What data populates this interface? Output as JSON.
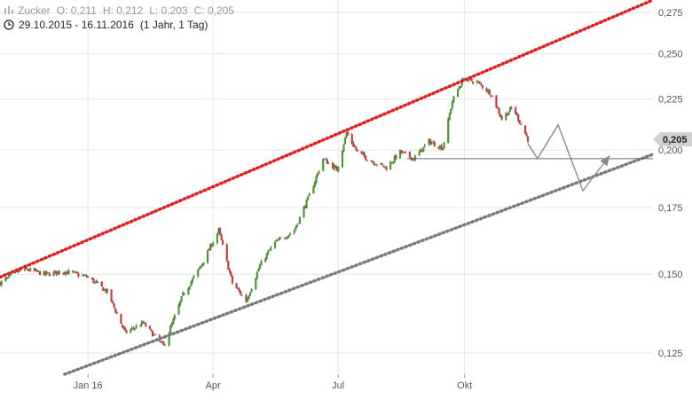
{
  "header": {
    "symbol": "Zucker",
    "open_label": "O:",
    "open": "0,211",
    "high_label": "H:",
    "high": "0,212",
    "low_label": "L:",
    "low": "0,203",
    "close_label": "C:",
    "close": "0,205",
    "period": "29.10.2015 - 16.11.2016",
    "interval": "(1 Jahr, 1 Tag)",
    "period_icon": "clock-icon",
    "symbol_icon": "chart-logo-icon"
  },
  "chart_data": {
    "type": "candlestick",
    "title": "",
    "y_scale": "log",
    "ylim": [
      0.119,
      0.283
    ],
    "y_ticks": [
      {
        "value": 0.125,
        "label": "0,125"
      },
      {
        "value": 0.15,
        "label": "0,150"
      },
      {
        "value": 0.175,
        "label": "0,175"
      },
      {
        "value": 0.2,
        "label": "0,200"
      },
      {
        "value": 0.225,
        "label": "0,225"
      },
      {
        "value": 0.25,
        "label": "0,250"
      },
      {
        "value": 0.275,
        "label": "0,275"
      }
    ],
    "xlim": [
      "2015-10-29",
      "2017-02-15"
    ],
    "x_ticks": [
      {
        "date": "2016-01-01",
        "label": "Jan 16"
      },
      {
        "date": "2016-04-01",
        "label": "Apr"
      },
      {
        "date": "2016-07-01",
        "label": "Jul"
      },
      {
        "date": "2016-10-01",
        "label": "Okt"
      }
    ],
    "grid": true,
    "last_price": {
      "value": 0.205,
      "label": "0,205"
    },
    "colors": {
      "up": "#4a9a32",
      "down": "#c83c3c",
      "wick": "#444444",
      "grid": "#e6e6e6",
      "upper_channel": "#e02020",
      "lower_channel": "#7a7a7a",
      "projection": "#8a8a8a"
    },
    "close_path": [
      {
        "date": "2015-10-29",
        "close": 0.147
      },
      {
        "date": "2015-11-15",
        "close": 0.152
      },
      {
        "date": "2015-12-01",
        "close": 0.15
      },
      {
        "date": "2015-12-15",
        "close": 0.151
      },
      {
        "date": "2016-01-01",
        "close": 0.149
      },
      {
        "date": "2016-01-15",
        "close": 0.144
      },
      {
        "date": "2016-01-28",
        "close": 0.131
      },
      {
        "date": "2016-02-10",
        "close": 0.134
      },
      {
        "date": "2016-02-25",
        "close": 0.127
      },
      {
        "date": "2016-03-10",
        "close": 0.143
      },
      {
        "date": "2016-03-22",
        "close": 0.152
      },
      {
        "date": "2016-04-05",
        "close": 0.166
      },
      {
        "date": "2016-04-15",
        "close": 0.147
      },
      {
        "date": "2016-04-25",
        "close": 0.141
      },
      {
        "date": "2016-05-05",
        "close": 0.153
      },
      {
        "date": "2016-05-15",
        "close": 0.161
      },
      {
        "date": "2016-05-30",
        "close": 0.166
      },
      {
        "date": "2016-06-10",
        "close": 0.18
      },
      {
        "date": "2016-06-20",
        "close": 0.196
      },
      {
        "date": "2016-06-30",
        "close": 0.191
      },
      {
        "date": "2016-07-07",
        "close": 0.208
      },
      {
        "date": "2016-07-15",
        "close": 0.199
      },
      {
        "date": "2016-07-25",
        "close": 0.195
      },
      {
        "date": "2016-08-05",
        "close": 0.192
      },
      {
        "date": "2016-08-15",
        "close": 0.199
      },
      {
        "date": "2016-08-25",
        "close": 0.196
      },
      {
        "date": "2016-09-05",
        "close": 0.204
      },
      {
        "date": "2016-09-15",
        "close": 0.201
      },
      {
        "date": "2016-09-22",
        "close": 0.224
      },
      {
        "date": "2016-09-30",
        "close": 0.236
      },
      {
        "date": "2016-10-10",
        "close": 0.234
      },
      {
        "date": "2016-10-20",
        "close": 0.228
      },
      {
        "date": "2016-10-28",
        "close": 0.215
      },
      {
        "date": "2016-11-05",
        "close": 0.221
      },
      {
        "date": "2016-11-16",
        "close": 0.205
      }
    ],
    "upper_channel": {
      "start": {
        "date": "2015-10-29",
        "value": 0.149
      },
      "end": {
        "date": "2017-02-15",
        "value": 0.283
      }
    },
    "lower_channel": {
      "start": {
        "date": "2015-12-15",
        "value": 0.119
      },
      "end": {
        "date": "2017-02-15",
        "value": 0.198
      }
    },
    "support_line": {
      "start_date": "2016-08-20",
      "end_date": "2017-02-15",
      "value": 0.196
    },
    "projection": [
      {
        "date": "2016-11-16",
        "value": 0.203
      },
      {
        "date": "2016-11-23",
        "value": 0.196
      },
      {
        "date": "2016-12-08",
        "value": 0.212
      },
      {
        "date": "2016-12-26",
        "value": 0.182
      },
      {
        "date": "2017-01-14",
        "value": 0.197
      }
    ]
  }
}
